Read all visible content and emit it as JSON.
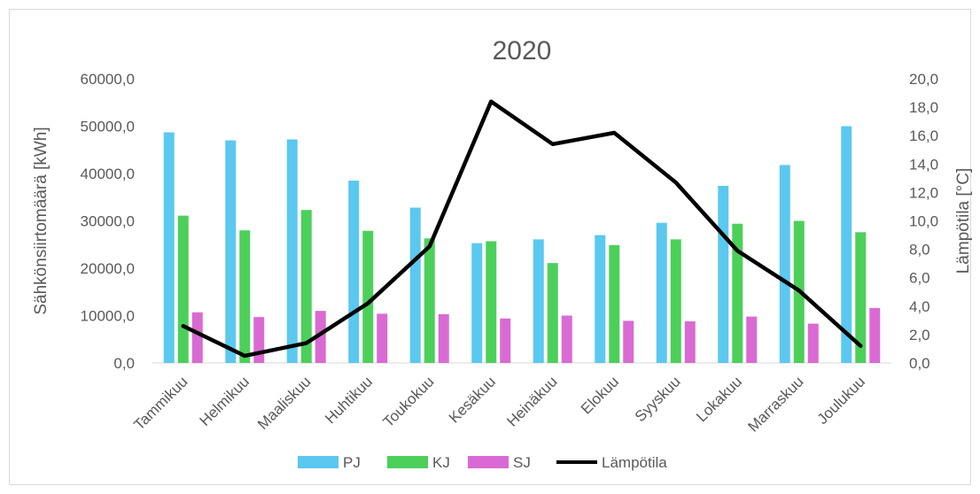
{
  "chart_data": {
    "type": "bar",
    "title": "2020",
    "ylabel": "Sähkönsiirtomäärä [kWh]",
    "y2label": "Lämpötila [°C]",
    "categories": [
      "Tammikuu",
      "Helmikuu",
      "Maaliskuu",
      "Huhtikuu",
      "Toukokuu",
      "Kesäkuu",
      "Heinäkuu",
      "Elokuu",
      "Syyskuu",
      "Lokakuu",
      "Marraskuu",
      "Joulukuu"
    ],
    "ylim": [
      0,
      60000
    ],
    "y_ticks": [
      "0,0",
      "10000,0",
      "20000,0",
      "30000,0",
      "40000,0",
      "50000,0",
      "60000,0"
    ],
    "y2lim": [
      0,
      20
    ],
    "y2_ticks": [
      "0,0",
      "2,0",
      "4,0",
      "6,0",
      "8,0",
      "10,0",
      "12,0",
      "14,0",
      "16,0",
      "18,0",
      "20,0"
    ],
    "series": [
      {
        "name": "PJ",
        "kind": "bar",
        "color": "#5bc8f0",
        "values": [
          48700,
          47000,
          47200,
          38500,
          32800,
          25300,
          26100,
          27000,
          29600,
          37400,
          41800,
          50000
        ]
      },
      {
        "name": "KJ",
        "kind": "bar",
        "color": "#4cd05a",
        "values": [
          31100,
          28000,
          32300,
          27900,
          26300,
          25700,
          21100,
          24900,
          26100,
          29400,
          30000,
          27600
        ]
      },
      {
        "name": "SJ",
        "kind": "bar",
        "color": "#d96ad3",
        "values": [
          10700,
          9700,
          11000,
          10400,
          10300,
          9400,
          10000,
          8900,
          8800,
          9800,
          8300,
          11600
        ]
      },
      {
        "name": "Lämpötila",
        "kind": "line",
        "axis": "secondary",
        "color": "#000000",
        "values": [
          2.6,
          0.5,
          1.4,
          4.2,
          8.2,
          18.4,
          15.4,
          16.2,
          12.7,
          7.9,
          5.1,
          1.2
        ]
      }
    ],
    "legend_position": "bottom",
    "grid": false
  }
}
